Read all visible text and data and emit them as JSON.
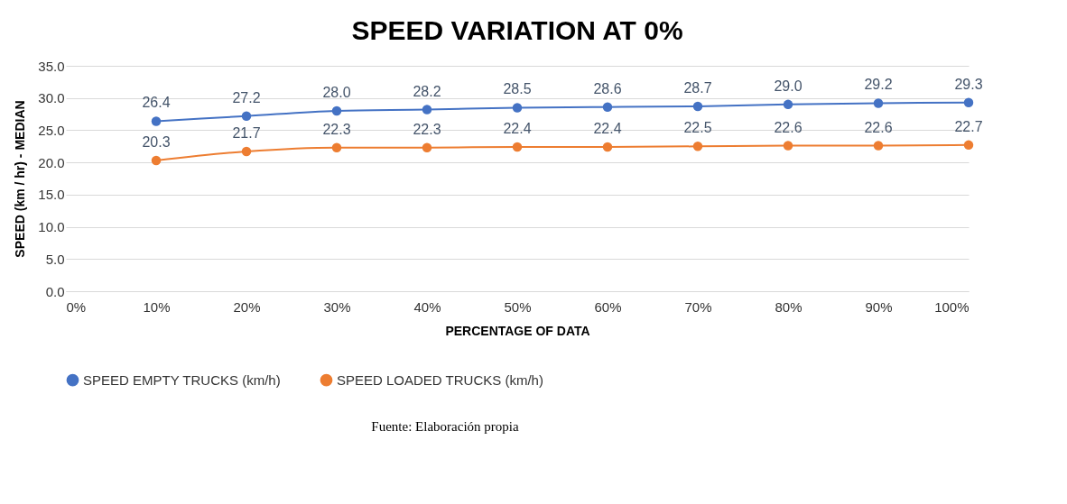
{
  "chart_data": {
    "type": "line",
    "title": "SPEED VARIATION AT 0%",
    "xlabel": "PERCENTAGE OF DATA",
    "ylabel": "SPEED (km / hr) - MEDIAN",
    "x": [
      10,
      20,
      30,
      40,
      50,
      60,
      70,
      80,
      90,
      100
    ],
    "series": [
      {
        "name": "SPEED EMPTY TRUCKS (km/h)",
        "color": "#4472c4",
        "values": [
          26.4,
          27.2,
          28.0,
          28.2,
          28.5,
          28.6,
          28.7,
          29.0,
          29.2,
          29.3
        ],
        "value_labels": [
          "26.4",
          "27.2",
          "28.0",
          "28.2",
          "28.5",
          "28.6",
          "28.7",
          "29.0",
          "29.2",
          "29.3"
        ]
      },
      {
        "name": "SPEED LOADED TRUCKS (km/h)",
        "color": "#ed7d31",
        "values": [
          20.3,
          21.7,
          22.3,
          22.3,
          22.4,
          22.4,
          22.5,
          22.6,
          22.6,
          22.7
        ],
        "value_labels": [
          "20.3",
          "21.7",
          "22.3",
          "22.3",
          "22.4",
          "22.4",
          "22.5",
          "22.6",
          "22.6",
          "22.7"
        ]
      }
    ],
    "xlim": [
      0,
      100
    ],
    "xticks": [
      {
        "value": 0,
        "label": "0%"
      },
      {
        "value": 10,
        "label": "10%"
      },
      {
        "value": 20,
        "label": "20%"
      },
      {
        "value": 30,
        "label": "30%"
      },
      {
        "value": 40,
        "label": "40%"
      },
      {
        "value": 50,
        "label": "50%"
      },
      {
        "value": 60,
        "label": "60%"
      },
      {
        "value": 70,
        "label": "70%"
      },
      {
        "value": 80,
        "label": "80%"
      },
      {
        "value": 90,
        "label": "90%"
      },
      {
        "value": 100,
        "label": "100%"
      }
    ],
    "ylim": [
      0,
      35
    ],
    "yticks": [
      {
        "value": 0,
        "label": "0.0"
      },
      {
        "value": 5,
        "label": "5.0"
      },
      {
        "value": 10,
        "label": "10.0"
      },
      {
        "value": 15,
        "label": "15.0"
      },
      {
        "value": 20,
        "label": "20.0"
      },
      {
        "value": 25,
        "label": "25.0"
      },
      {
        "value": 30,
        "label": "30.0"
      },
      {
        "value": 35,
        "label": "35.0"
      }
    ],
    "grid": "y",
    "legend": "bottom",
    "marker": "circle",
    "line_style": "solid",
    "annotations": [
      "Fuente: Elaboración propia"
    ]
  }
}
